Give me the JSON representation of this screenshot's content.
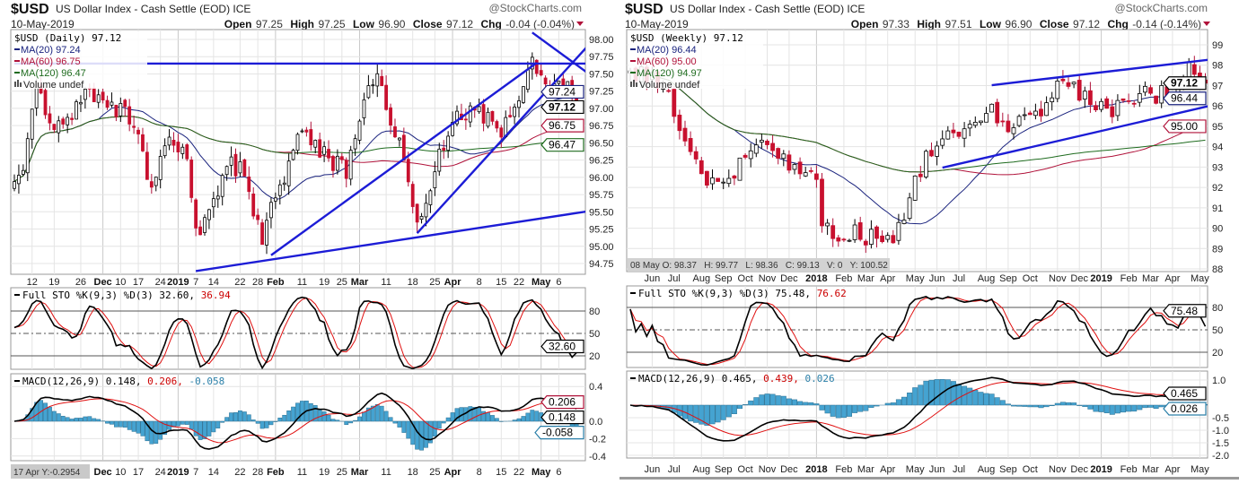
{
  "chart_data": [
    {
      "type": "candlestick",
      "header": {
        "symbol": "$USD",
        "name": "US Dollar Index - Cash Settle (EOD)",
        "exchange": "ICE",
        "date": "10-May-2019",
        "watermark": "@StockCharts.com",
        "open_label": "Open",
        "open": "97.25",
        "high_label": "High",
        "high": "97.25",
        "low_label": "Low",
        "low": "96.90",
        "close_label": "Close",
        "close": "97.12",
        "chg_label": "Chg",
        "chg": "-0.04 (-0.04%)"
      },
      "legend": {
        "main": "$USD (Daily) 97.12",
        "ma20": "MA(20) 97.24",
        "ma60": "MA(60) 96.75",
        "ma120": "MA(120) 96.47",
        "volume": "Volume undef"
      },
      "bars": 128,
      "close_keypoints": [
        [
          0,
          95.8
        ],
        [
          1,
          95.9
        ],
        [
          5,
          97.3
        ],
        [
          9,
          96.6
        ],
        [
          13,
          96.9
        ],
        [
          17,
          97.2
        ],
        [
          24,
          97.0
        ],
        [
          28,
          96.5
        ],
        [
          31,
          95.9
        ],
        [
          35,
          96.6
        ],
        [
          39,
          96.2
        ],
        [
          41,
          95.2
        ],
        [
          44,
          95.4
        ],
        [
          48,
          96.3
        ],
        [
          52,
          96.0
        ],
        [
          56,
          95.0
        ],
        [
          58,
          95.5
        ],
        [
          61,
          96.0
        ],
        [
          65,
          96.8
        ],
        [
          69,
          96.4
        ],
        [
          75,
          96.1
        ],
        [
          78,
          96.8
        ],
        [
          82,
          97.6
        ],
        [
          85,
          96.9
        ],
        [
          88,
          96.3
        ],
        [
          91,
          95.4
        ],
        [
          94,
          95.8
        ],
        [
          97,
          96.5
        ],
        [
          101,
          96.9
        ],
        [
          105,
          97.0
        ],
        [
          110,
          96.7
        ],
        [
          114,
          97.1
        ],
        [
          117,
          97.9
        ],
        [
          119,
          97.4
        ],
        [
          122,
          97.3
        ],
        [
          125,
          97.3
        ],
        [
          127,
          97.12
        ]
      ],
      "price_axis": {
        "ticks": [
          "98.00",
          "97.75",
          "97.50",
          "97.25",
          "97.00",
          "96.75",
          "96.50",
          "96.25",
          "96.00",
          "95.75",
          "95.50",
          "95.25",
          "95.00",
          "94.75"
        ],
        "range": [
          94.6,
          98.2
        ]
      },
      "price_tags": [
        {
          "value": "97.24",
          "level": 97.24,
          "color": "#1a237e",
          "bold": false
        },
        {
          "value": "97.12",
          "level": 97.05,
          "color": "#000000",
          "bold": true
        },
        {
          "value": "96.75",
          "level": 96.75,
          "color": "#b0123a",
          "bold": false
        },
        {
          "value": "96.47",
          "level": 96.47,
          "color": "#1e6b1e",
          "bold": false
        }
      ],
      "trendlines": [
        {
          "from": [
            0,
            97.65
          ],
          "to": [
            138,
            97.65
          ]
        },
        {
          "from": [
            41,
            94.64
          ],
          "to": [
            137,
            95.58
          ]
        },
        {
          "from": [
            58,
            94.87
          ],
          "to": [
            118,
            97.66
          ]
        },
        {
          "from": [
            91,
            95.19
          ],
          "to": [
            135,
            98.29
          ]
        },
        {
          "from": [
            117,
            98.1
          ],
          "to": [
            136,
            97.21
          ]
        }
      ],
      "date_labels": [
        {
          "t": "12",
          "i": 4
        },
        {
          "t": "19",
          "i": 9
        },
        {
          "t": "26",
          "i": 15
        },
        {
          "t": "Dec",
          "i": 20,
          "b": true
        },
        {
          "t": "10",
          "i": 24
        },
        {
          "t": "17",
          "i": 28
        },
        {
          "t": "24",
          "i": 33
        },
        {
          "t": "2019",
          "i": 37,
          "b": true
        },
        {
          "t": "7",
          "i": 41
        },
        {
          "t": "14",
          "i": 45
        },
        {
          "t": "22",
          "i": 51
        },
        {
          "t": "28",
          "i": 55
        },
        {
          "t": "Feb",
          "i": 59,
          "b": true
        },
        {
          "t": "11",
          "i": 65
        },
        {
          "t": "19",
          "i": 70
        },
        {
          "t": "25",
          "i": 74
        },
        {
          "t": "Mar",
          "i": 78,
          "b": true
        },
        {
          "t": "11",
          "i": 84
        },
        {
          "t": "18",
          "i": 90
        },
        {
          "t": "25",
          "i": 95
        },
        {
          "t": "Apr",
          "i": 99,
          "b": true
        },
        {
          "t": "8",
          "i": 105
        },
        {
          "t": "15",
          "i": 110
        },
        {
          "t": "22",
          "i": 114
        },
        {
          "t": "May",
          "i": 119,
          "b": true
        },
        {
          "t": "6",
          "i": 123
        }
      ],
      "bottom_date_labels": [
        {
          "t": "Dec",
          "i": 20,
          "b": true
        },
        {
          "t": "10",
          "i": 24
        },
        {
          "t": "17",
          "i": 28
        },
        {
          "t": "24",
          "i": 33
        },
        {
          "t": "2019",
          "i": 37,
          "b": true
        },
        {
          "t": "7",
          "i": 41
        },
        {
          "t": "14",
          "i": 45
        },
        {
          "t": "22",
          "i": 51
        },
        {
          "t": "28",
          "i": 55
        },
        {
          "t": "Feb",
          "i": 59,
          "b": true
        },
        {
          "t": "11",
          "i": 65
        },
        {
          "t": "19",
          "i": 70
        },
        {
          "t": "25",
          "i": 74
        },
        {
          "t": "Mar",
          "i": 78,
          "b": true
        },
        {
          "t": "11",
          "i": 84
        },
        {
          "t": "18",
          "i": 90
        },
        {
          "t": "25",
          "i": 95
        },
        {
          "t": "Apr",
          "i": 99,
          "b": true
        },
        {
          "t": "8",
          "i": 105
        },
        {
          "t": "15",
          "i": 110
        },
        {
          "t": "22",
          "i": 114
        },
        {
          "t": "May",
          "i": 119,
          "b": true
        },
        {
          "t": "6",
          "i": 123
        }
      ],
      "sto": {
        "legend": "Full STO %K(9,3) %D(3) 32.60,",
        "d_value": "36.94",
        "ticks": [
          "80",
          "50",
          "20"
        ],
        "tag": "32.60"
      },
      "macd": {
        "legend": "MACD(12,26,9) 0.148,",
        "signal_value": "0.206,",
        "hist_value": "-0.058",
        "ticks": [
          {
            "t": "0.4",
            "v": 0.4
          },
          {
            "t": "0.0",
            "v": 0.0
          },
          {
            "t": "-0.2",
            "v": -0.2
          },
          {
            "t": "-0.4",
            "v": -0.4
          }
        ],
        "range": [
          -0.42,
          0.45
        ],
        "tags": [
          {
            "value": "0.206",
            "level": 0.22,
            "color": "#b0123a"
          },
          {
            "value": "0.148",
            "level": 0.14,
            "color": "#000000"
          },
          {
            "value": "-0.058",
            "level": -0.05,
            "color": "#2a7fa8"
          }
        ]
      },
      "crosshair": "17 Apr Y:-0.2954"
    },
    {
      "type": "candlestick",
      "header": {
        "symbol": "$USD",
        "name": "US Dollar Index - Cash Settle (EOD)",
        "exchange": "ICE",
        "date": "10-May-2019",
        "watermark": "@StockCharts.com",
        "open_label": "Open",
        "open": "97.33",
        "high_label": "High",
        "high": "97.51",
        "low_label": "Low",
        "low": "96.90",
        "close_label": "Close",
        "close": "97.12",
        "chg_label": "Chg",
        "chg": "-0.14 (-0.14%)"
      },
      "legend": {
        "main": "$USD (Weekly) 97.12",
        "ma20": "MA(20) 96.44",
        "ma60": "MA(60) 95.00",
        "ma120": "MA(120) 94.97",
        "volume": "Volume undef"
      },
      "bars": 106,
      "close_keypoints": [
        [
          0,
          97.3
        ],
        [
          3,
          97.6
        ],
        [
          7,
          96.5
        ],
        [
          10,
          94.0
        ],
        [
          13,
          92.7
        ],
        [
          16,
          92.0
        ],
        [
          18,
          92.4
        ],
        [
          21,
          93.5
        ],
        [
          25,
          94.5
        ],
        [
          28,
          93.3
        ],
        [
          31,
          92.9
        ],
        [
          34,
          92.3
        ],
        [
          35,
          90.2
        ],
        [
          38,
          89.2
        ],
        [
          40,
          89.8
        ],
        [
          43,
          89.6
        ],
        [
          47,
          89.3
        ],
        [
          49,
          90.0
        ],
        [
          52,
          92.3
        ],
        [
          54,
          93.5
        ],
        [
          57,
          94.7
        ],
        [
          61,
          94.7
        ],
        [
          64,
          95.2
        ],
        [
          66,
          96.2
        ],
        [
          68,
          94.9
        ],
        [
          70,
          95.0
        ],
        [
          73,
          95.5
        ],
        [
          75,
          95.9
        ],
        [
          78,
          96.8
        ],
        [
          80,
          97.0
        ],
        [
          83,
          96.5
        ],
        [
          85,
          96.1
        ],
        [
          88,
          95.6
        ],
        [
          90,
          96.1
        ],
        [
          93,
          96.7
        ],
        [
          95,
          96.4
        ],
        [
          98,
          96.8
        ],
        [
          101,
          97.0
        ],
        [
          102,
          97.8
        ],
        [
          105,
          97.12
        ]
      ],
      "price_axis": {
        "ticks": [
          "99",
          "98",
          "97",
          "96",
          "95",
          "94",
          "93",
          "92",
          "91",
          "90",
          "89",
          "88"
        ],
        "range": [
          87.8,
          100
        ]
      },
      "price_tags": [
        {
          "value": "97.12",
          "level": 97.12,
          "color": "#000000",
          "bold": true
        },
        {
          "value": "96.44",
          "level": 96.44,
          "color": "#1a237e",
          "bold": false
        },
        {
          "value": "95.00",
          "level": 95.0,
          "color": "#b0123a",
          "bold": false
        }
      ],
      "trendlines": [
        {
          "from": [
            66,
            97.02
          ],
          "to": [
            108,
            98.34
          ]
        },
        {
          "from": [
            57,
            92.97
          ],
          "to": [
            108,
            96.14
          ]
        }
      ],
      "date_labels": [
        {
          "t": "Jun",
          "i": 4
        },
        {
          "t": "Jul",
          "i": 8
        },
        {
          "t": "Aug",
          "i": 13
        },
        {
          "t": "Sep",
          "i": 17
        },
        {
          "t": "Oct",
          "i": 21
        },
        {
          "t": "Nov",
          "i": 25
        },
        {
          "t": "Dec",
          "i": 29
        },
        {
          "t": "2018",
          "i": 34,
          "b": true
        },
        {
          "t": "Feb",
          "i": 39
        },
        {
          "t": "Mar",
          "i": 43
        },
        {
          "t": "Apr",
          "i": 47
        },
        {
          "t": "May",
          "i": 52
        },
        {
          "t": "Jun",
          "i": 56
        },
        {
          "t": "Jul",
          "i": 60
        },
        {
          "t": "Aug",
          "i": 65
        },
        {
          "t": "Sep",
          "i": 69
        },
        {
          "t": "Oct",
          "i": 73
        },
        {
          "t": "Nov",
          "i": 78
        },
        {
          "t": "Dec",
          "i": 82
        },
        {
          "t": "2019",
          "i": 86,
          "b": true
        },
        {
          "t": "Feb",
          "i": 91
        },
        {
          "t": "Mar",
          "i": 95
        },
        {
          "t": "Apr",
          "i": 99
        },
        {
          "t": "May",
          "i": 104
        }
      ],
      "bottom_date_labels": [
        {
          "t": "Jun",
          "i": 4
        },
        {
          "t": "Jul",
          "i": 8
        },
        {
          "t": "Aug",
          "i": 13
        },
        {
          "t": "Sep",
          "i": 17
        },
        {
          "t": "Oct",
          "i": 21
        },
        {
          "t": "Nov",
          "i": 25
        },
        {
          "t": "Dec",
          "i": 29
        },
        {
          "t": "2018",
          "i": 34,
          "b": true
        },
        {
          "t": "Feb",
          "i": 39
        },
        {
          "t": "Mar",
          "i": 43
        },
        {
          "t": "Apr",
          "i": 47
        },
        {
          "t": "May",
          "i": 52
        },
        {
          "t": "Jun",
          "i": 56
        },
        {
          "t": "Jul",
          "i": 60
        },
        {
          "t": "Aug",
          "i": 65
        },
        {
          "t": "Sep",
          "i": 69
        },
        {
          "t": "Oct",
          "i": 73
        },
        {
          "t": "Nov",
          "i": 78
        },
        {
          "t": "Dec",
          "i": 82
        },
        {
          "t": "2019",
          "i": 86,
          "b": true
        },
        {
          "t": "Feb",
          "i": 91
        },
        {
          "t": "Mar",
          "i": 95
        },
        {
          "t": "Apr",
          "i": 99
        },
        {
          "t": "May",
          "i": 104
        }
      ],
      "sto": {
        "legend": "Full STO %K(9,3) %D(3) 75.48,",
        "d_value": "76.62",
        "ticks": [
          "80",
          "50",
          "20"
        ],
        "tag": "75.48"
      },
      "macd": {
        "legend": "MACD(12,26,9) 0.465,",
        "signal_value": "0.439,",
        "hist_value": "0.026",
        "ticks": [
          {
            "t": "1.0",
            "v": 1.0
          },
          {
            "t": "-0.5",
            "v": -0.5
          },
          {
            "t": "-1.0",
            "v": -1.0
          },
          {
            "t": "-1.5",
            "v": -1.5
          },
          {
            "t": "-2.0",
            "v": -2.0
          }
        ],
        "range": [
          -2.1,
          1.1
        ],
        "tags": [
          {
            "value": "0.465",
            "level": 0.465,
            "color": "#000000"
          },
          {
            "value": "0.026",
            "level": -0.1,
            "color": "#2a7fa8"
          }
        ]
      },
      "crosshair": "08 May O: 98.37   H: 99.77   L: 98.36   C: 99.13   V: 0   Y: 100.52"
    }
  ]
}
